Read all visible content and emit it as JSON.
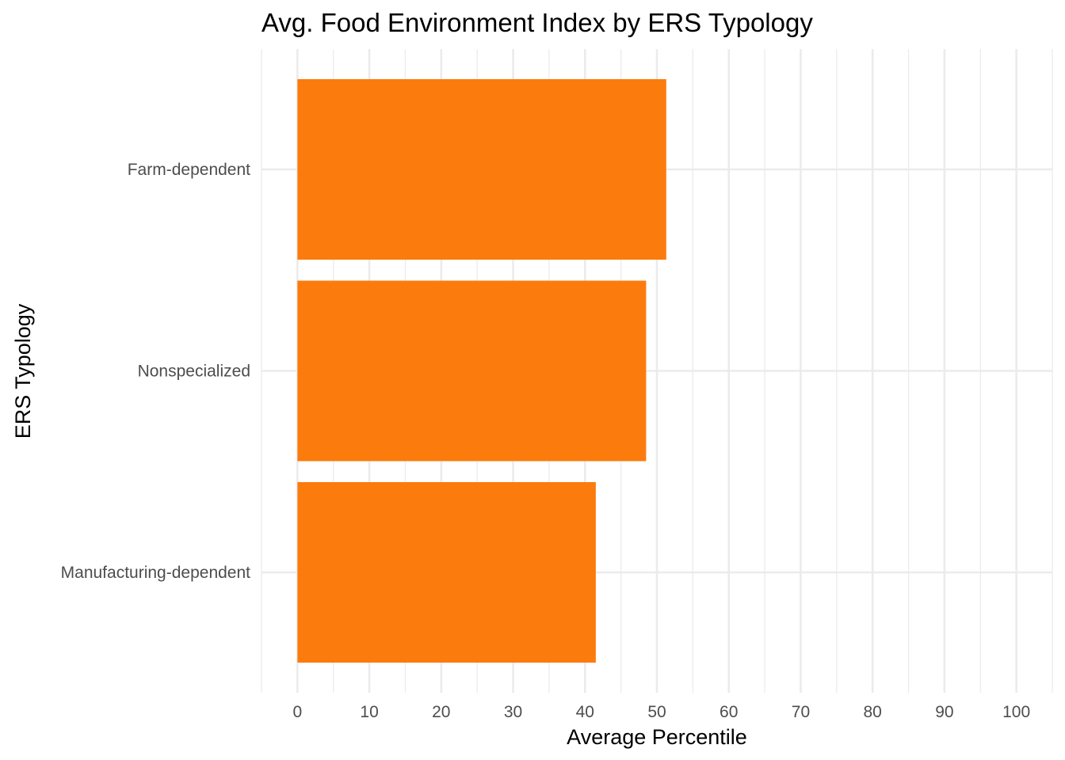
{
  "chart_data": {
    "type": "bar",
    "orientation": "horizontal",
    "title": "Avg. Food Environment Index by ERS Typology",
    "xlabel": "Average Percentile",
    "ylabel": "ERS Typology",
    "categories": [
      "Farm-dependent",
      "Nonspecialized",
      "Manufacturing-dependent"
    ],
    "values": [
      51.3,
      48.5,
      41.5
    ],
    "xlim": [
      -5,
      105
    ],
    "x_ticks": [
      0,
      10,
      20,
      30,
      40,
      50,
      60,
      70,
      80,
      90,
      100
    ],
    "x_tick_labels": [
      "0",
      "10",
      "20",
      "30",
      "40",
      "50",
      "60",
      "70",
      "80",
      "90",
      "100"
    ],
    "grid": true,
    "bar_color": "#FC7B0D",
    "grid_color": "#EBEBEB",
    "background": "#FFFFFF"
  }
}
